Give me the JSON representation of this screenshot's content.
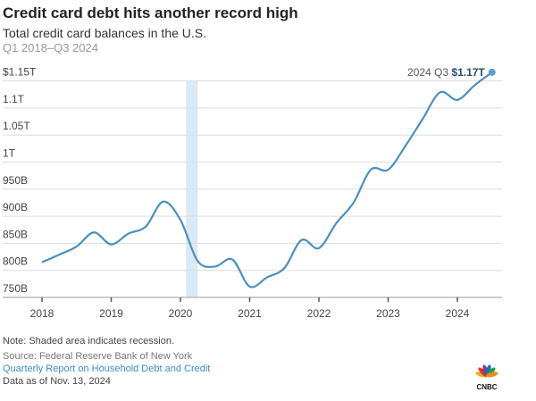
{
  "chart_data": {
    "type": "line",
    "title": "Credit card debt hits another record high",
    "subtitle": "Total credit card balances in the U.S.",
    "period": "Q1 2018–Q3 2024",
    "xlabel": "",
    "ylabel": "",
    "x_ticks": [
      "2018",
      "2019",
      "2020",
      "2021",
      "2022",
      "2023",
      "2024"
    ],
    "y_ticks": [
      {
        "value": 750,
        "label": "750B"
      },
      {
        "value": 800,
        "label": "800B"
      },
      {
        "value": 850,
        "label": "850B"
      },
      {
        "value": 900,
        "label": "900B"
      },
      {
        "value": 950,
        "label": "950B"
      },
      {
        "value": 1000,
        "label": "1T"
      },
      {
        "value": 1050,
        "label": "1.05T"
      },
      {
        "value": 1100,
        "label": "1.1T"
      },
      {
        "value": 1150,
        "label": "$1.15T"
      }
    ],
    "ylim": [
      750,
      1170
    ],
    "xlim": [
      2018,
      2024.5
    ],
    "grid": true,
    "units": "billions of dollars",
    "recession": [
      2020.08,
      2020.25
    ],
    "series": [
      {
        "color": "#4a90c2",
        "x": [
          "2018 Q1",
          "2018 Q2",
          "2018 Q3",
          "2018 Q4",
          "2019 Q1",
          "2019 Q2",
          "2019 Q3",
          "2019 Q4",
          "2020 Q1",
          "2020 Q2",
          "2020 Q3",
          "2020 Q4",
          "2021 Q1",
          "2021 Q2",
          "2021 Q3",
          "2021 Q4",
          "2022 Q1",
          "2022 Q2",
          "2022 Q3",
          "2022 Q4",
          "2023 Q1",
          "2023 Q2",
          "2023 Q3",
          "2023 Q4",
          "2024 Q1",
          "2024 Q2",
          "2024 Q3"
        ],
        "values": [
          815,
          829,
          844,
          870,
          848,
          868,
          881,
          927,
          893,
          817,
          807,
          820,
          770,
          787,
          804,
          856,
          841,
          887,
          925,
          986,
          986,
          1030,
          1080,
          1129,
          1115,
          1142,
          1166
        ]
      }
    ],
    "annotation": {
      "label": "2024 Q3",
      "value": "$1.17T"
    },
    "recession_color": "#dbe9f4"
  },
  "footer": {
    "note": "Note: Shaded area indicates recession.",
    "source": "Source: Federal Reserve Bank of New York",
    "report_link": "Quarterly Report on Household Debt and Credit",
    "data_date": "Data as of Nov. 13, 2024"
  },
  "logo": {
    "text": "CNBC"
  }
}
